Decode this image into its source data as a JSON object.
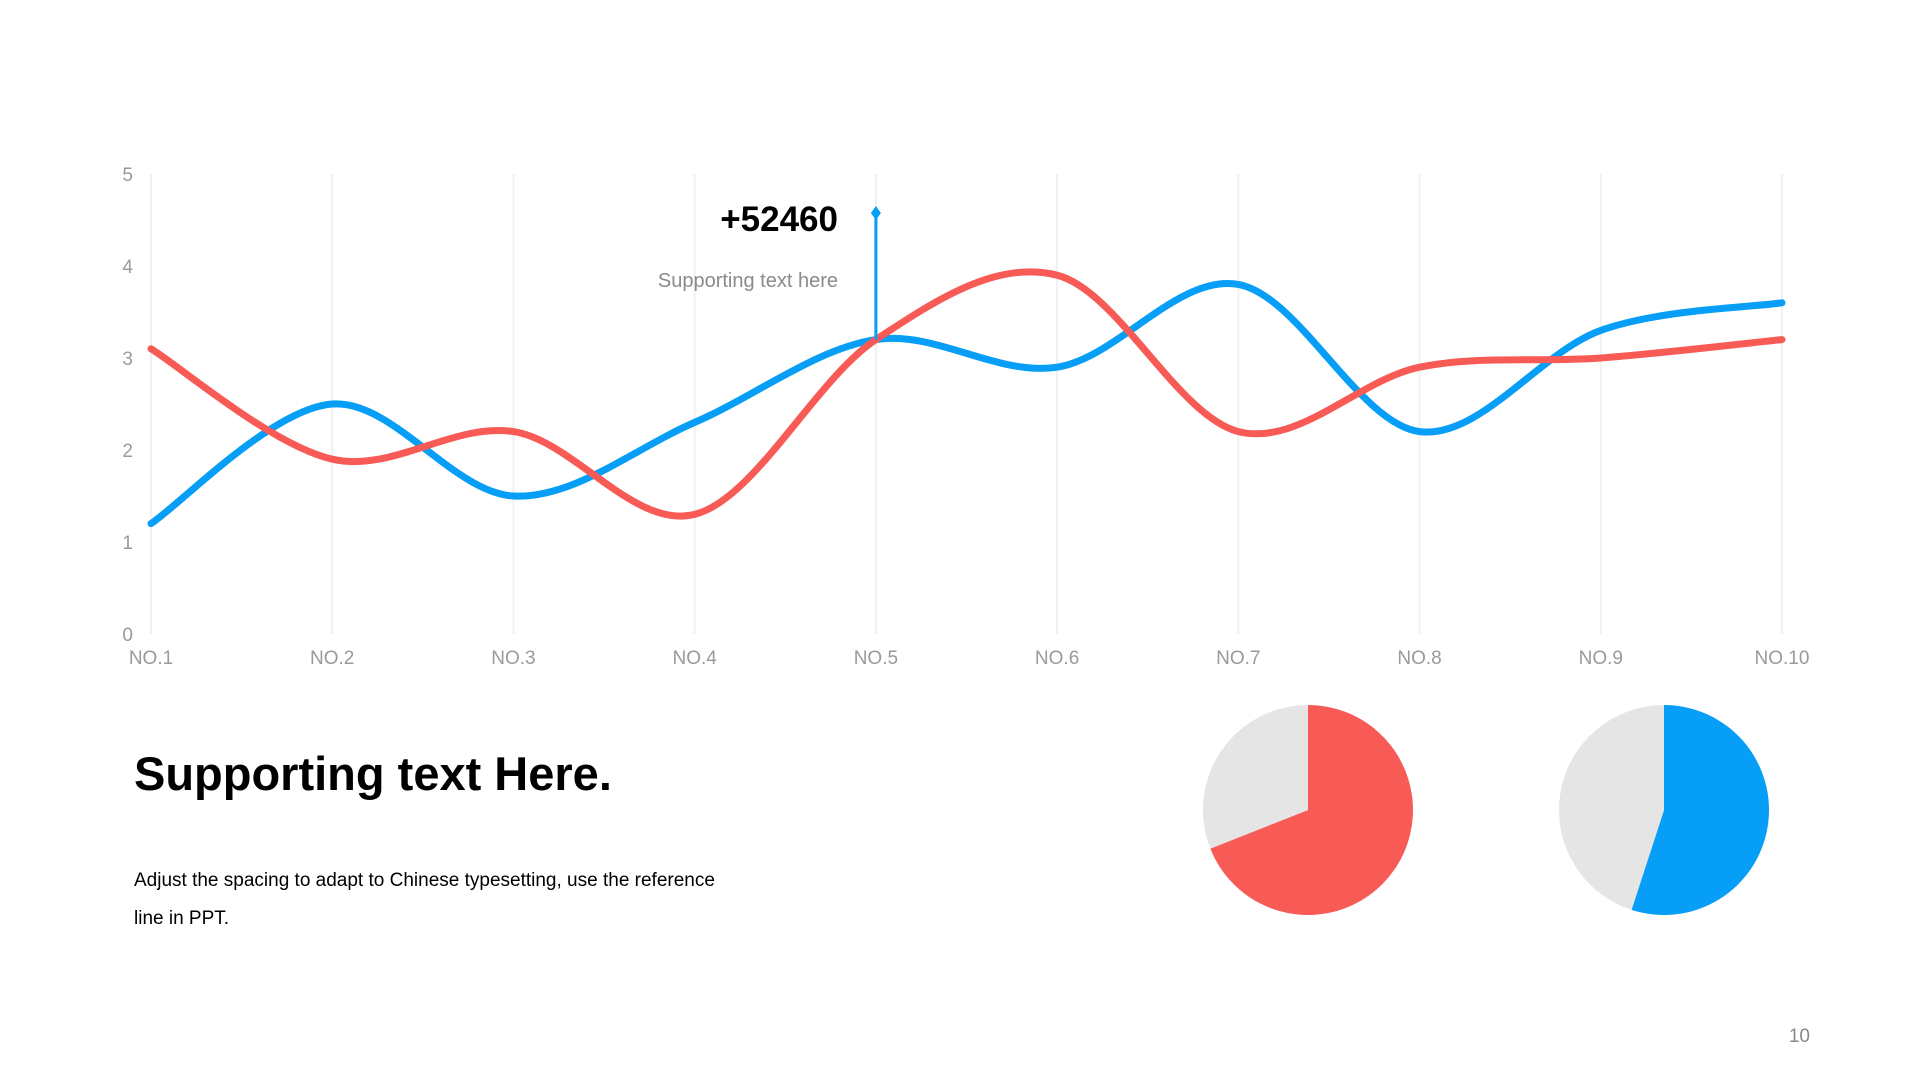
{
  "slide": {
    "heading": "Supporting text Here.",
    "body": "Adjust the spacing to adapt to Chinese typesetting, use the reference line in PPT.",
    "page_number": "10"
  },
  "callout": {
    "value": "+52460",
    "text": "Supporting  text here",
    "category": "NO.5"
  },
  "colors": {
    "red": "#f85a55",
    "blue": "#069ef6",
    "grey": "#e5e5e5",
    "grid": "#f1f1f1",
    "axis_text": "#9a9a9a"
  },
  "chart_data": [
    {
      "type": "line",
      "categories": [
        "NO.1",
        "NO.2",
        "NO.3",
        "NO.4",
        "NO.5",
        "NO.6",
        "NO.7",
        "NO.8",
        "NO.9",
        "NO.10"
      ],
      "ylim": [
        0,
        5
      ],
      "yticks": [
        0,
        1,
        2,
        3,
        4,
        5
      ],
      "grid": "vertical",
      "smooth": true,
      "series": [
        {
          "color": "#069ef6",
          "values": [
            1.2,
            2.5,
            1.5,
            2.3,
            3.2,
            2.9,
            3.8,
            2.2,
            3.3,
            3.6
          ]
        },
        {
          "color": "#f85a55",
          "values": [
            3.1,
            1.9,
            2.2,
            1.3,
            3.2,
            3.9,
            2.2,
            2.9,
            3.0,
            3.2
          ]
        }
      ]
    },
    {
      "type": "pie",
      "slices": [
        {
          "value": 0.69,
          "color": "#f85a55"
        },
        {
          "value": 0.31,
          "color": "#e5e5e5"
        }
      ]
    },
    {
      "type": "pie",
      "slices": [
        {
          "value": 0.55,
          "color": "#069ef6"
        },
        {
          "value": 0.45,
          "color": "#e5e5e5"
        }
      ]
    }
  ]
}
